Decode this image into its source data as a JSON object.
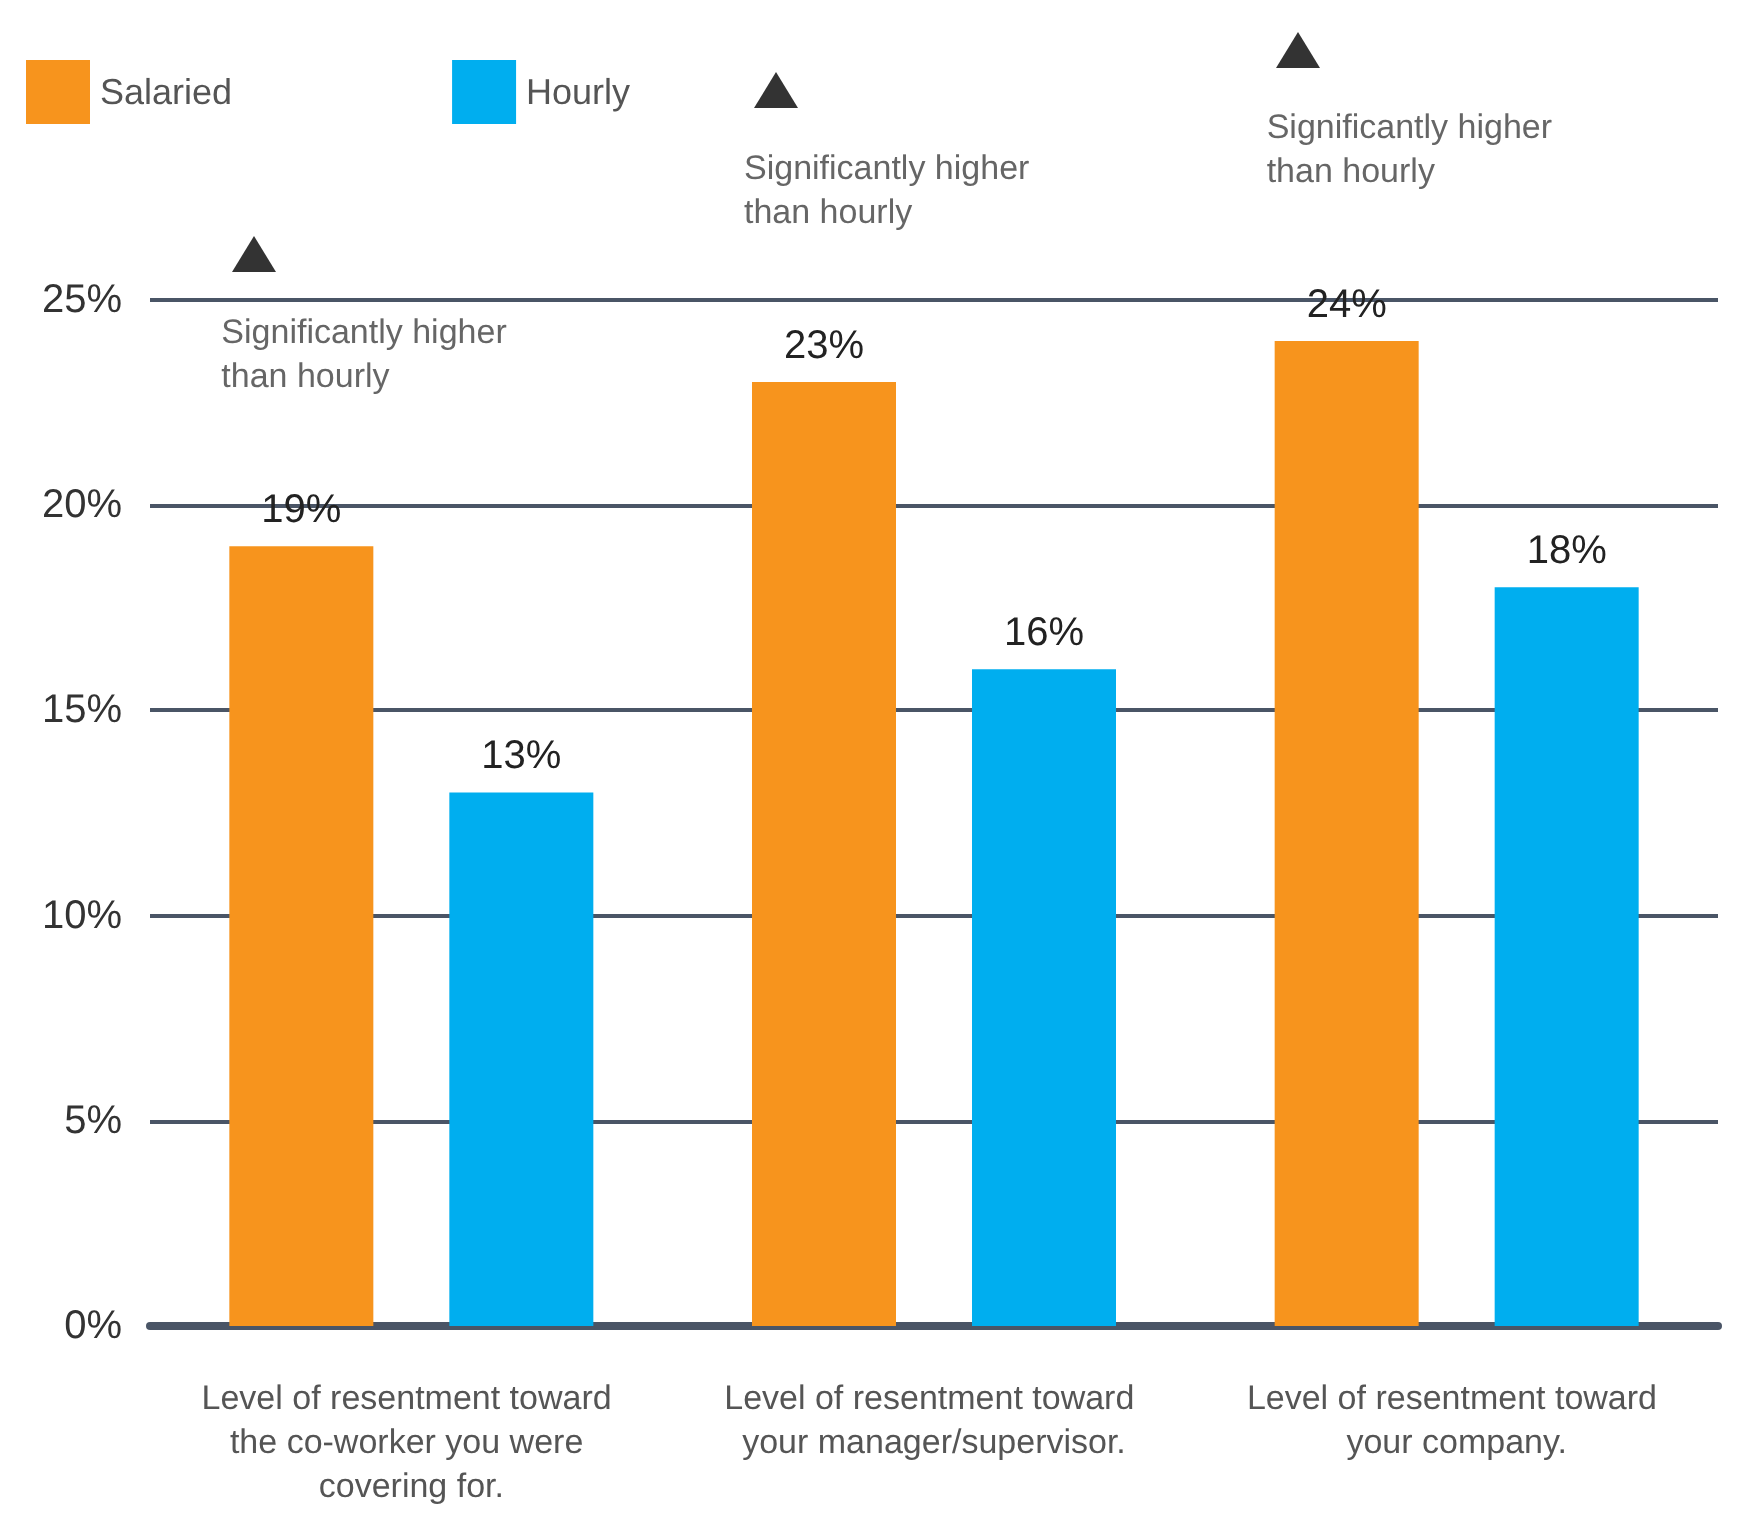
{
  "chart_data": {
    "type": "bar",
    "categories": [
      "Level of resentment toward the co-worker you were covering for.",
      "Level of resentment toward your manager/supervisor.",
      "Level of resentment toward your company."
    ],
    "series": [
      {
        "name": "Salaried",
        "color": "#f7941d",
        "values": [
          19,
          23,
          24
        ],
        "value_labels": [
          "19%",
          "23%",
          "24%"
        ]
      },
      {
        "name": "Hourly",
        "color": "#00aeef",
        "values": [
          13,
          16,
          18
        ],
        "value_labels": [
          "13%",
          "16%",
          "18%"
        ]
      }
    ],
    "ylim": [
      0,
      25
    ],
    "yticks": [
      {
        "value": 0,
        "label": "0%"
      },
      {
        "value": 5,
        "label": "5%"
      },
      {
        "value": 10,
        "label": "10%"
      },
      {
        "value": 15,
        "label": "15%"
      },
      {
        "value": 20,
        "label": "20%"
      },
      {
        "value": 25,
        "label": "25%"
      }
    ],
    "grid": "y",
    "legend": "top left",
    "annotations": [
      "Significantly higher than hourly",
      "Significantly higher than hourly",
      "Significantly higher than hourly"
    ]
  }
}
